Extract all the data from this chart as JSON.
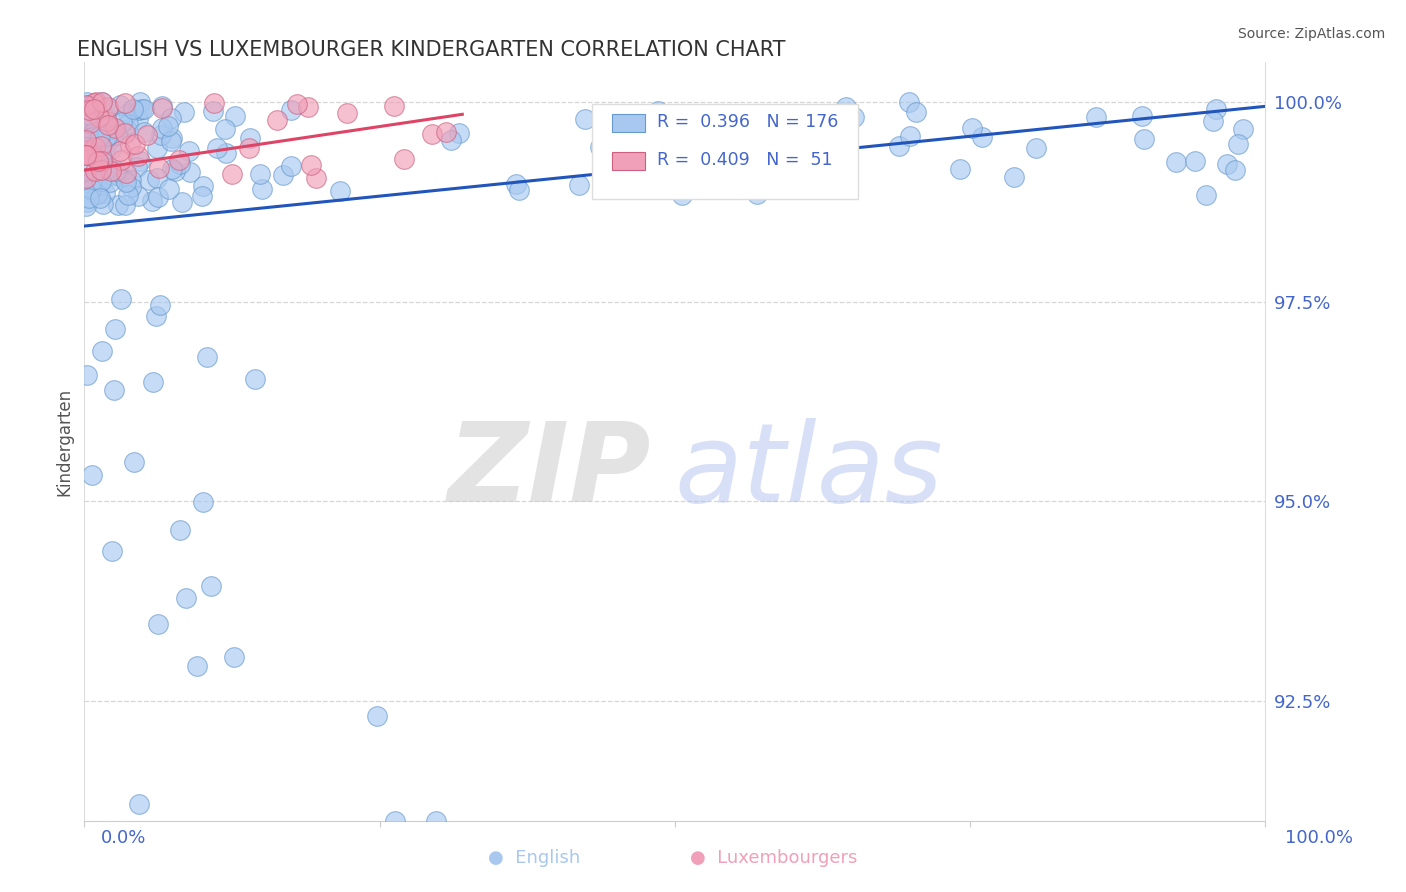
{
  "title": "ENGLISH VS LUXEMBOURGER KINDERGARTEN CORRELATION CHART",
  "source_text": "Source: ZipAtlas.com",
  "ylabel": "Kindergarten",
  "legend_entries": [
    {
      "label": "English",
      "R": 0.396,
      "N": 176,
      "color": "#a8c8f0",
      "edge_color": "#6699cc"
    },
    {
      "label": "Luxembourgers",
      "R": 0.409,
      "N": 51,
      "color": "#f0a0b8",
      "edge_color": "#cc6080"
    }
  ],
  "trend_english_color": "#2255bb",
  "trend_lux_color": "#dd4466",
  "ytick_labels": [
    "92.5%",
    "95.0%",
    "97.5%",
    "100.0%"
  ],
  "ytick_values": [
    0.925,
    0.95,
    0.975,
    1.0
  ],
  "ytick_color": "#4466cc",
  "xtick_color": "#4466cc",
  "grid_color": "#cccccc",
  "background_color": "#ffffff",
  "ymin": 0.91,
  "ymax": 1.005,
  "xmin": 0.0,
  "xmax": 1.0
}
